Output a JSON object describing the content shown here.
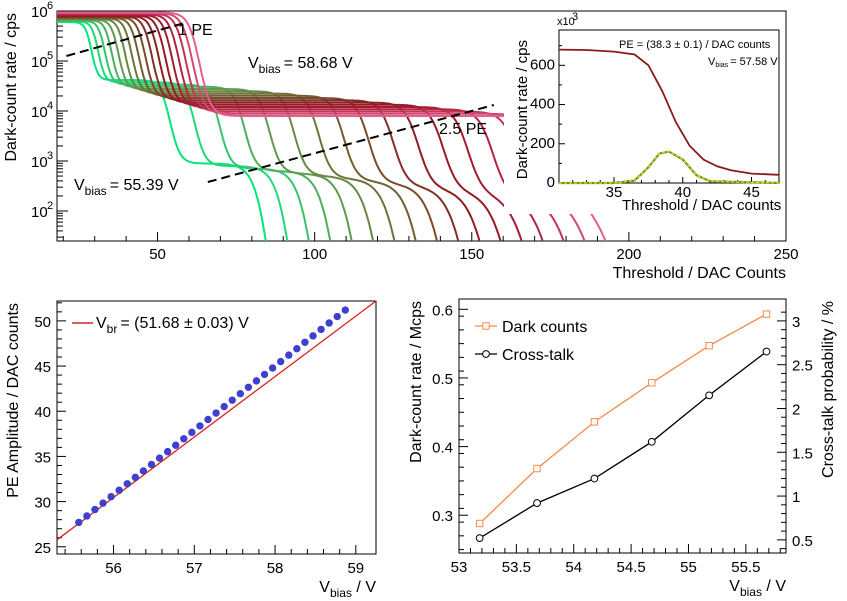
{
  "chart_data": [
    {
      "type": "line",
      "name": "dark-count-scan",
      "xlabel": "Threshold / DAC Counts",
      "ylabel": "Dark-count rate / cps",
      "xlim": [
        18,
        250
      ],
      "ylim_log10": [
        1.4,
        6.0
      ],
      "x_ticks": [
        "50",
        "100",
        "150",
        "200",
        "250"
      ],
      "y_ticks": [
        "10",
        "10",
        "10",
        "10",
        "10"
      ],
      "y_tick_exponents": [
        "2",
        "3",
        "4",
        "5",
        "6"
      ],
      "n_curves": 17,
      "vbias_first": "55.39 V",
      "vbias_last": "58.68 V",
      "annotations": {
        "v_label": "V",
        "v_sub": "bias",
        "low": "= 55.39 V",
        "high": "= 58.68 V",
        "pe1": "1 PE",
        "pe25": "2.5 PE"
      },
      "colors": [
        "#00e67a",
        "#1ed879",
        "#36c46c",
        "#4fae5e",
        "#5f9a4f",
        "#6a8744",
        "#6e733a",
        "#715f31",
        "#7a4b2a",
        "#842f26",
        "#8e1f22",
        "#971a25",
        "#a41c31",
        "#b22443",
        "#c23557",
        "#d3486f",
        "#e45e93"
      ]
    },
    {
      "type": "line",
      "name": "inset-threshold",
      "xlabel": "Threshold / DAC counts",
      "ylabel": "Dark-count rate / cps",
      "xlim": [
        31,
        47
      ],
      "ylim": [
        0,
        780
      ],
      "x_ticks": [
        "35",
        "40",
        "45"
      ],
      "y_ticks": [
        "0",
        "200",
        "400",
        "600"
      ],
      "scale_note": "x10",
      "scale_exp": "3",
      "pe_text": "PE = (38.3 ± 0.1) / DAC counts",
      "vbias_text": "V",
      "vbias_sub": "bias",
      "vbias_value": "= 57.58 V",
      "series": [
        {
          "name": "rate",
          "x": [
            31,
            33,
            35,
            36.5,
            37.5,
            38.5,
            39.5,
            40.5,
            41.5,
            42.5,
            43.5,
            45,
            47
          ],
          "values": [
            680,
            678,
            670,
            655,
            600,
            470,
            310,
            190,
            120,
            85,
            65,
            48,
            42
          ]
        },
        {
          "name": "derivative",
          "x": [
            31,
            35,
            36.5,
            37.5,
            38.3,
            39,
            40,
            41,
            42,
            47
          ],
          "values": [
            0,
            0,
            12,
            80,
            150,
            160,
            120,
            40,
            8,
            0
          ]
        }
      ]
    },
    {
      "type": "scatter",
      "name": "pe-amplitude",
      "xlabel": "V",
      "xlabel_sub": "bias",
      "xlabel_unit": " / V",
      "ylabel": "PE Amplitude / DAC counts",
      "xlim": [
        55.3,
        59.25
      ],
      "ylim": [
        24.2,
        52.2
      ],
      "x_ticks": [
        "56",
        "57",
        "58",
        "59"
      ],
      "y_ticks": [
        "25",
        "30",
        "35",
        "40",
        "45",
        "50"
      ],
      "legend": "V",
      "legend_sub": "br",
      "legend_value": "= (51.68 ± 0.03) V",
      "fit": {
        "slope": 7.12,
        "vbr": 51.68
      },
      "x_start": 55.57,
      "x_step": 0.1,
      "n_points": 34
    },
    {
      "type": "line",
      "name": "dark-counts-crosstalk",
      "xlabel": "V",
      "xlabel_sub": "bias",
      "xlabel_unit": " / V",
      "ylabel": "Dark-count rate / Mcps",
      "y2label": "Cross-talk probability / %",
      "xlim": [
        53.0,
        55.85
      ],
      "ylim": [
        0.245,
        0.615
      ],
      "y2lim": [
        0.35,
        3.25
      ],
      "x_ticks": [
        "53",
        "53.5",
        "54",
        "54.5",
        "55",
        "55.5"
      ],
      "y_ticks": [
        "0.3",
        "0.4",
        "0.5",
        "0.6"
      ],
      "y2_ticks": [
        "0.5",
        "1",
        "1.5",
        "2",
        "2.5",
        "3"
      ],
      "x": [
        53.18,
        53.68,
        54.18,
        54.68,
        55.18,
        55.68
      ],
      "series": [
        {
          "name": "Dark counts",
          "color": "#f58a4b",
          "values": [
            0.288,
            0.368,
            0.436,
            0.493,
            0.547,
            0.593
          ]
        },
        {
          "name": "Cross-talk",
          "color": "#000000",
          "values": [
            0.52,
            0.92,
            1.2,
            1.62,
            2.15,
            2.65
          ]
        }
      ]
    }
  ]
}
